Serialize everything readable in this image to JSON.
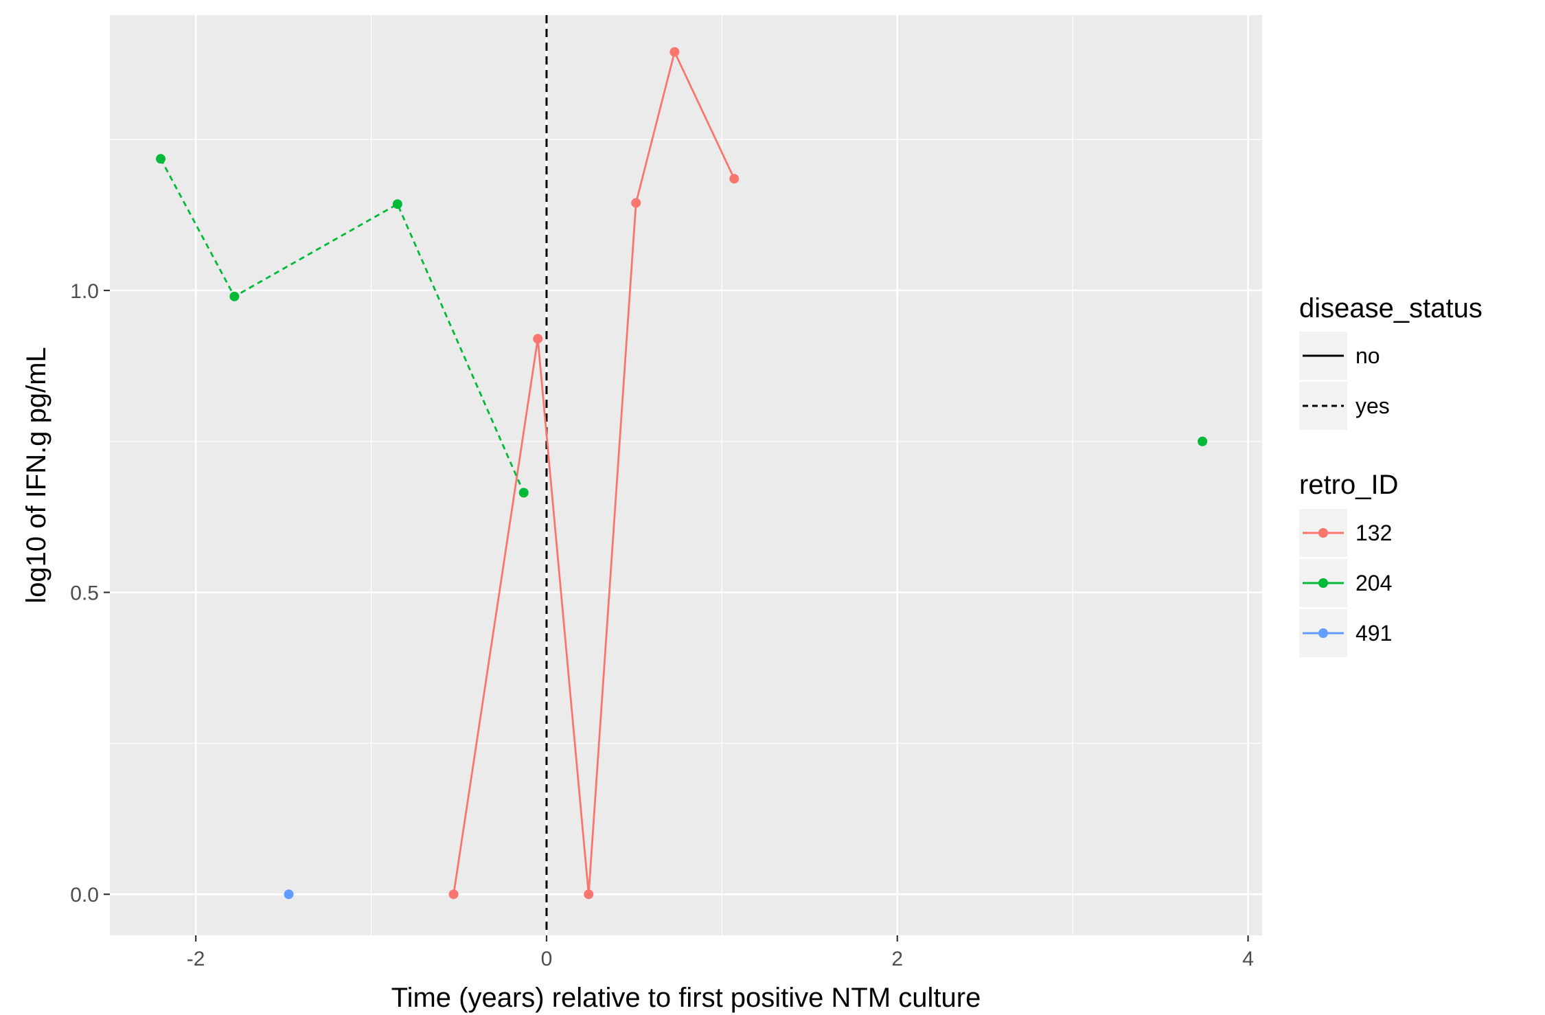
{
  "chart_data": {
    "type": "line",
    "title": "",
    "xlabel": "Time (years) relative to first positive NTM culture",
    "ylabel": "log10 of IFN.g pg/mL",
    "xlim": [
      -2.49,
      4.08
    ],
    "ylim": [
      -0.068,
      1.456
    ],
    "x_ticks": [
      -2,
      0,
      2,
      4
    ],
    "x_tick_labels": [
      "-2",
      "0",
      "2",
      "4"
    ],
    "y_ticks": [
      0.0,
      0.5,
      1.0
    ],
    "y_tick_labels": [
      "0.0",
      "0.5",
      "1.0"
    ],
    "grid": true,
    "background": "#ebebeb",
    "reference_line": {
      "x": 0,
      "style": "dashed",
      "color": "#000000"
    },
    "series": [
      {
        "name": "132",
        "color": "#f8766d",
        "disease_status": "no",
        "x": [
          -0.53,
          -0.05,
          0.24,
          0.51,
          0.73,
          1.07
        ],
        "y": [
          0.0,
          0.92,
          0.0,
          1.145,
          1.395,
          1.185
        ]
      },
      {
        "name": "204",
        "color": "#00ba38",
        "disease_status": "yes",
        "x": [
          -2.2,
          -1.78,
          -0.85,
          -0.13
        ],
        "y": [
          1.218,
          0.99,
          1.143,
          0.665
        ]
      },
      {
        "name": "204",
        "color": "#00ba38",
        "disease_status": "no",
        "x": [
          3.74
        ],
        "y": [
          0.75
        ]
      },
      {
        "name": "491",
        "color": "#619cff",
        "disease_status": "no",
        "x": [
          -1.47
        ],
        "y": [
          0.0
        ]
      }
    ],
    "legend": {
      "placement": "right",
      "linetype_title": "disease_status",
      "linetype_items": [
        {
          "label": "no",
          "dash": "solid"
        },
        {
          "label": "yes",
          "dash": "dashed"
        }
      ],
      "color_title": "retro_ID",
      "color_items": [
        {
          "label": "132",
          "color": "#f8766d"
        },
        {
          "label": "204",
          "color": "#00ba38"
        },
        {
          "label": "491",
          "color": "#619cff"
        }
      ]
    }
  }
}
